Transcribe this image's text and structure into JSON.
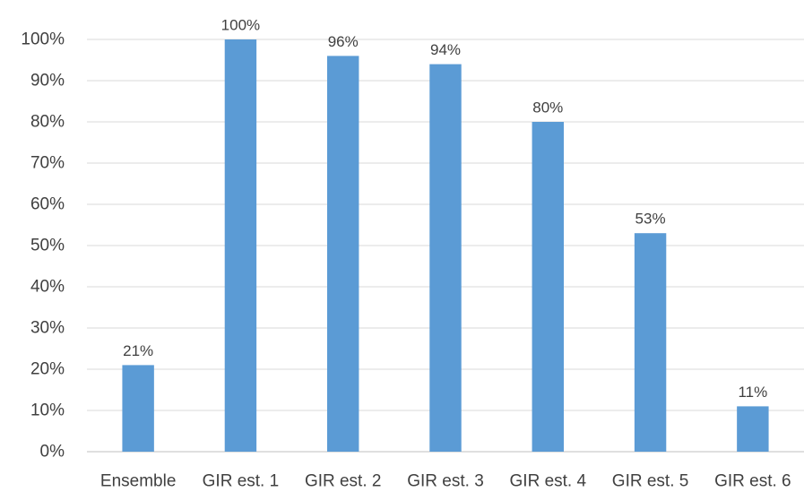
{
  "chart_data": {
    "type": "bar",
    "categories": [
      "Ensemble",
      "GIR est. 1",
      "GIR est. 2",
      "GIR est. 3",
      "GIR est. 4",
      "GIR est. 5",
      "GIR est. 6"
    ],
    "values": [
      21,
      100,
      96,
      94,
      80,
      53,
      11
    ],
    "data_labels": [
      "21%",
      "100%",
      "96%",
      "94%",
      "80%",
      "53%",
      "11%"
    ],
    "ylim": [
      0,
      100
    ],
    "yticks": [
      0,
      10,
      20,
      30,
      40,
      50,
      60,
      70,
      80,
      90,
      100
    ],
    "ytick_labels": [
      "0%",
      "10%",
      "20%",
      "30%",
      "40%",
      "50%",
      "60%",
      "70%",
      "80%",
      "90%",
      "100%"
    ],
    "grid": true,
    "legend": "none",
    "bar_color": "#5b9bd5"
  }
}
